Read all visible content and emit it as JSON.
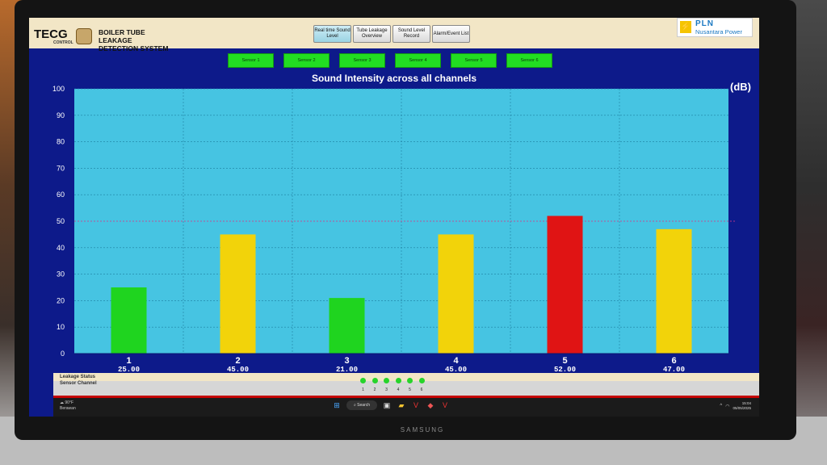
{
  "header": {
    "logo": "TECG",
    "logo_sub": "CONTROL",
    "system_title": "BOILER TUBE LEAKAGE DETECTION SYSTEM",
    "nav": [
      {
        "label": "Real time Sound Level",
        "active": true
      },
      {
        "label": "Tube Leakage Overview",
        "active": false
      },
      {
        "label": "Sound Level Record",
        "active": false
      },
      {
        "label": "Alarm/Event List",
        "active": false
      }
    ],
    "brand_name": "PLN",
    "brand_sub": "Nusantara Power"
  },
  "sensors": [
    "Sensor 1",
    "Sensor 2",
    "Sensor 3",
    "Sensor 4",
    "Sensor 5",
    "Sensor 6"
  ],
  "chart_data": {
    "type": "bar",
    "title": "Sound Intensity across all channels",
    "ylabel_unit": "(dB)",
    "categories": [
      "1",
      "2",
      "3",
      "4",
      "5",
      "6"
    ],
    "values": [
      25,
      45,
      21,
      45,
      52,
      47
    ],
    "value_labels": [
      "25.00",
      "45.00",
      "21.00",
      "45.00",
      "52.00",
      "47.00"
    ],
    "bar_colors": [
      "#1fd41f",
      "#f2d30a",
      "#1fd41f",
      "#f2d30a",
      "#e01414",
      "#f2d30a"
    ],
    "ylim": [
      0,
      100
    ],
    "yticks": [
      0,
      10,
      20,
      30,
      40,
      50,
      60,
      70,
      80,
      90,
      100
    ],
    "threshold": 50,
    "grid": true
  },
  "status_panel": {
    "leakage_label": "Leakage Status",
    "channel_label": "Sensor Channel",
    "channels": [
      "1",
      "2",
      "3",
      "4",
      "5",
      "6"
    ]
  },
  "taskbar": {
    "weather_temp": "90°F",
    "weather_desc": "Berawan",
    "search_label": "Search",
    "time": "15:04",
    "date": "05/05/2025"
  },
  "monitor_brand": "SAMSUNG",
  "colors": {
    "screen_bg": "#0d1a8a",
    "plot_bg": "#46c4e2",
    "header_bg": "#f2e6c6",
    "sensor_green": "#22dd22"
  }
}
